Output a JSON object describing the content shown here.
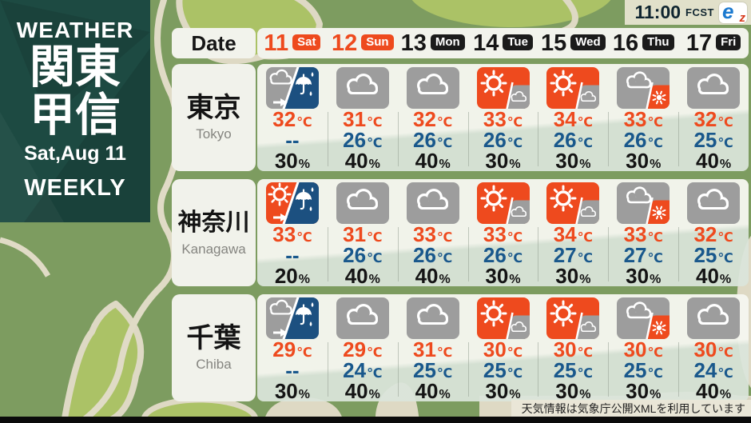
{
  "meta": {
    "time": "11:00",
    "fcst_label": "FCST",
    "logo_e": "e",
    "logo_z": "z"
  },
  "sidebar": {
    "top_label": "WEATHER",
    "region_line1": "関東",
    "region_line2": "甲信",
    "issue_date": "Sat,Aug 11",
    "bottom_label": "WEEKLY"
  },
  "table": {
    "date_header": "Date",
    "units": {
      "temp": "℃",
      "pop": "%"
    },
    "days": [
      {
        "num": "11",
        "dow": "Sat",
        "weekend": true
      },
      {
        "num": "12",
        "dow": "Sun",
        "weekend": true
      },
      {
        "num": "13",
        "dow": "Mon",
        "weekend": false
      },
      {
        "num": "14",
        "dow": "Tue",
        "weekend": false
      },
      {
        "num": "15",
        "dow": "Wed",
        "weekend": false
      },
      {
        "num": "16",
        "dow": "Thu",
        "weekend": false
      },
      {
        "num": "17",
        "dow": "Fri",
        "weekend": false
      }
    ],
    "rows": [
      {
        "name_jp": "東京",
        "name_en": "Tokyo",
        "cells": [
          {
            "icon": "cloud-then-rain",
            "high": "32",
            "low": "--",
            "pop": "30"
          },
          {
            "icon": "cloudy",
            "high": "31",
            "low": "26",
            "pop": "40"
          },
          {
            "icon": "cloudy",
            "high": "32",
            "low": "26",
            "pop": "40"
          },
          {
            "icon": "sun-then-cloud",
            "high": "33",
            "low": "26",
            "pop": "30"
          },
          {
            "icon": "sun-then-cloud",
            "high": "34",
            "low": "26",
            "pop": "30"
          },
          {
            "icon": "cloud-then-sun",
            "high": "33",
            "low": "26",
            "pop": "30"
          },
          {
            "icon": "cloudy",
            "high": "32",
            "low": "25",
            "pop": "40"
          }
        ]
      },
      {
        "name_jp": "神奈川",
        "name_en": "Kanagawa",
        "cells": [
          {
            "icon": "sun-then-rain",
            "high": "33",
            "low": "--",
            "pop": "20"
          },
          {
            "icon": "cloudy",
            "high": "31",
            "low": "26",
            "pop": "40"
          },
          {
            "icon": "cloudy",
            "high": "33",
            "low": "26",
            "pop": "40"
          },
          {
            "icon": "sun-then-cloud",
            "high": "33",
            "low": "26",
            "pop": "30"
          },
          {
            "icon": "sun-then-cloud",
            "high": "34",
            "low": "27",
            "pop": "30"
          },
          {
            "icon": "cloud-then-sun",
            "high": "33",
            "low": "27",
            "pop": "30"
          },
          {
            "icon": "cloudy",
            "high": "32",
            "low": "25",
            "pop": "40"
          }
        ]
      },
      {
        "name_jp": "千葉",
        "name_en": "Chiba",
        "cells": [
          {
            "icon": "cloud-then-rain",
            "high": "29",
            "low": "--",
            "pop": "30"
          },
          {
            "icon": "cloudy",
            "high": "29",
            "low": "24",
            "pop": "40"
          },
          {
            "icon": "cloudy",
            "high": "31",
            "low": "25",
            "pop": "40"
          },
          {
            "icon": "sun-then-cloud",
            "high": "30",
            "low": "25",
            "pop": "30"
          },
          {
            "icon": "sun-then-cloud",
            "high": "30",
            "low": "25",
            "pop": "30"
          },
          {
            "icon": "cloud-then-sun",
            "high": "30",
            "low": "25",
            "pop": "30"
          },
          {
            "icon": "cloudy",
            "high": "30",
            "low": "24",
            "pop": "40"
          }
        ]
      }
    ]
  },
  "footer": {
    "credit": "天気情報は気象庁公開XMLを利用しています"
  },
  "colors": {
    "orange": "#ee4a1e",
    "blue": "#19588c",
    "rain_blue": "#1c5080",
    "icon_gray": "#9d9d9d",
    "sidebar_green": "#1d4a42"
  }
}
